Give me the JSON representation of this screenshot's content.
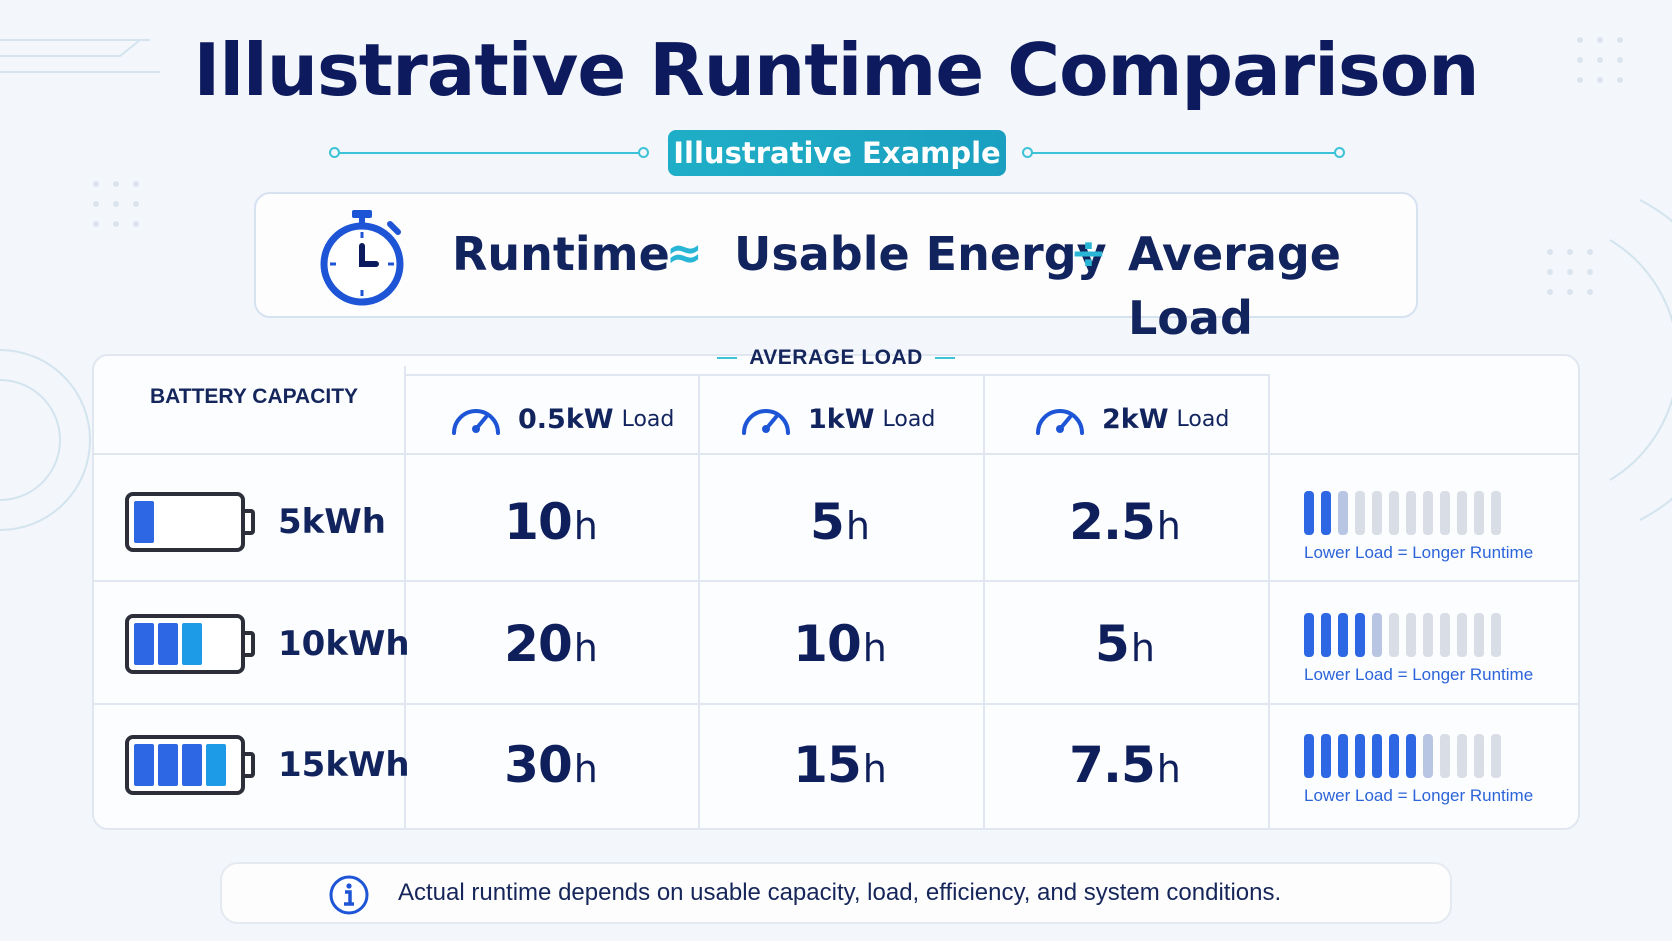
{
  "title": "Illustrative Runtime Comparison",
  "badge": "Illustrative Example",
  "formula": {
    "term1": "Runtime",
    "approx_symbol": "≈",
    "term2": "Usable Energy",
    "divide_symbol": "÷",
    "term3": "Average Load"
  },
  "table": {
    "group_label": "AVERAGE LOAD",
    "capacity_header": "BATTERY CAPACITY",
    "loads": [
      {
        "value": "0.5kW",
        "label": "Load"
      },
      {
        "value": "1kW",
        "label": "Load"
      },
      {
        "value": "2kW",
        "label": "Load"
      }
    ],
    "rows": [
      {
        "capacity": "5kWh",
        "battery_fill": 1,
        "runtimes": [
          {
            "num": "10",
            "unit": "h"
          },
          {
            "num": "5",
            "unit": "h"
          },
          {
            "num": "2.5",
            "unit": "h"
          }
        ],
        "meter_on": 2,
        "meter_total": 12,
        "meter_caption": "Lower Load = Longer Runtime"
      },
      {
        "capacity": "10kWh",
        "battery_fill": 3,
        "runtimes": [
          {
            "num": "20",
            "unit": "h"
          },
          {
            "num": "10",
            "unit": "h"
          },
          {
            "num": "5",
            "unit": "h"
          }
        ],
        "meter_on": 4,
        "meter_total": 12,
        "meter_caption": "Lower Load = Longer Runtime"
      },
      {
        "capacity": "15kWh",
        "battery_fill": 4,
        "runtimes": [
          {
            "num": "30",
            "unit": "h"
          },
          {
            "num": "15",
            "unit": "h"
          },
          {
            "num": "7.5",
            "unit": "h"
          }
        ],
        "meter_on": 7,
        "meter_total": 12,
        "meter_caption": "Lower Load = Longer Runtime"
      }
    ]
  },
  "note": "Actual runtime depends on usable capacity, load, efficiency, and system conditions.",
  "colors": {
    "navy": "#0d1b5e",
    "teal": "#1faec7",
    "blue": "#2d67e3"
  }
}
